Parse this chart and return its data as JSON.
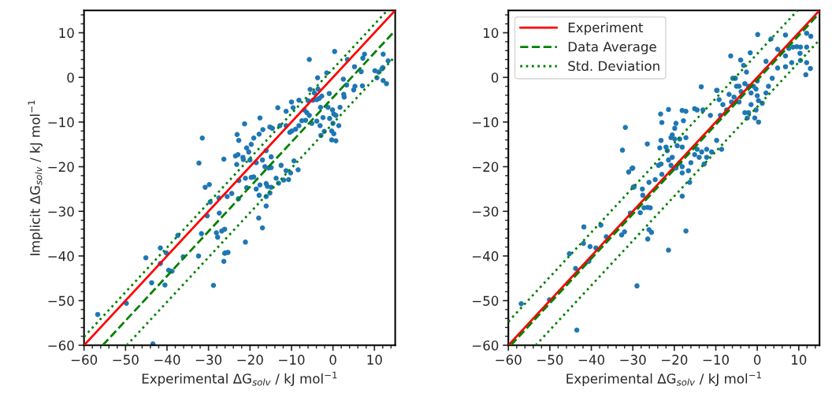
{
  "chart_data": [
    {
      "type": "scatter",
      "xlabel": "Experimental ΔG$_{solv}$ / kJ mol$^{−1}$",
      "ylabel": "Implicit ΔG$_{solv}$ / kJ mol$^{−1}$",
      "xlim": [
        -60,
        15
      ],
      "ylim": [
        -60,
        15
      ],
      "xticks": [
        -60,
        -50,
        -40,
        -30,
        -20,
        -10,
        0,
        10
      ],
      "yticks": [
        -60,
        -50,
        -40,
        -30,
        -20,
        -10,
        0,
        10
      ],
      "grid": false,
      "legend": false,
      "series": [
        {
          "color": "#1f77b4",
          "marker": "circle",
          "x": [
            -31.5,
            -32.3,
            -26.3,
            -30.8,
            -29.8,
            -29.6,
            -27.5,
            -30.3,
            -27.4,
            -31.7,
            -28.1,
            -27.8,
            -26.8,
            -26.1,
            -26.1,
            -26.3,
            -32.4,
            -28.8,
            -37.4,
            -36.1,
            -41.6,
            -40.2,
            -41.6,
            -39.6,
            -38.8,
            -45.1,
            -43.7,
            -40.5,
            -49.8,
            -56.7,
            -43.4,
            0.4,
            -5.7,
            -1.5,
            -3.7,
            3.5,
            5.2,
            7.6,
            7.2,
            12.1,
            13.3,
            6.8,
            10.1,
            11.0,
            11.8,
            12.0,
            10.6,
            12.1,
            12.9,
            5.3,
            5.0,
            7.1,
            2.5,
            3.3,
            2.6,
            2.7,
            -0.9,
            -2.7,
            -3.6,
            -5.5,
            -4.5,
            -6.0,
            -4.8,
            -3.9,
            -3.3,
            -8.2,
            -10.0,
            -9.6,
            -13.3,
            -11.3,
            -6.9,
            -6.3,
            -5.7,
            -3.0,
            -1.2,
            -0.1,
            0.2,
            1.7,
            -0.8,
            -2.4,
            0.7,
            1.4,
            0.0,
            -0.3,
            0.2,
            -0.3,
            0.7,
            -2.9,
            -2.1,
            -3.1,
            -3.9,
            -5.1,
            -6.6,
            -7.5,
            -8.2,
            -9.0,
            -9.9,
            -10.4,
            -11.3,
            -12.8,
            -14.6,
            -15.2,
            -17.6,
            -21.3,
            -16.9,
            -17.8,
            -23.1,
            -22.7,
            -19.1,
            -19.7,
            -20.8,
            -20.3,
            -16.1,
            -23.5,
            -22.9,
            -21.7,
            -21.6,
            -23.2,
            -20.0,
            -18.5,
            -17.0,
            -14.9,
            -16.4,
            -15.5,
            -22.7,
            -21.1,
            -19.7,
            -19.1,
            -14.9,
            -12.5,
            -11.3,
            -10.2,
            -10.7,
            -11.9,
            -13.7,
            -13.1,
            -14.9,
            -15.8,
            -8.4,
            -9.4,
            -24.4,
            -22.8,
            -25.5,
            -20.8,
            -18.5,
            -17.6,
            -16.1,
            -15.2,
            -17.8,
            -16.1,
            -16.1,
            -17.9,
            -17.0,
            -21.1,
            -25.9,
            -25.3
          ],
          "values": [
            -13.6,
            -19.2,
            -18.3,
            -24.6,
            -24.0,
            -27.9,
            -27.0,
            -31.0,
            -30.4,
            -35.0,
            -34.8,
            -35.8,
            -34.4,
            -34.0,
            -39.4,
            -41.2,
            -40.0,
            -46.6,
            -35.4,
            -40.2,
            -38.2,
            -39.3,
            -41.7,
            -43.2,
            -43.4,
            -40.4,
            -46.0,
            -46.5,
            -50.6,
            -53.1,
            -59.7,
            5.8,
            4.0,
            1.0,
            -0.1,
            4.0,
            2.4,
            5.2,
            4.3,
            5.2,
            3.7,
            1.3,
            1.5,
            1.2,
            1.9,
            2.2,
            -0.1,
            -0.7,
            -1.4,
            -2.0,
            -2.8,
            -1.9,
            -0.4,
            -1.7,
            -3.8,
            -4.4,
            -3.6,
            -4.2,
            -2.6,
            -2.7,
            -3.5,
            -5.2,
            -5.1,
            -5.0,
            -4.7,
            -5.1,
            -5.5,
            -6.8,
            -6.8,
            -7.6,
            -7.3,
            -7.9,
            -8.5,
            -6.7,
            -6.7,
            -7.3,
            -8.2,
            -6.7,
            -9.2,
            -9.0,
            -8.5,
            -10.8,
            -10.3,
            -12.0,
            -12.6,
            -14.0,
            -14.2,
            -13.0,
            -12.1,
            -10.8,
            -9.8,
            -10.3,
            -9.6,
            -9.7,
            -10.8,
            -11.6,
            -12.0,
            -12.3,
            -10.8,
            -10.8,
            -11.4,
            -11.1,
            -9.1,
            -10.4,
            -11.7,
            -12.7,
            -12.8,
            -14.1,
            -13.6,
            -15.0,
            -15.8,
            -16.7,
            -16.4,
            -17.6,
            -17.3,
            -17.9,
            -18.4,
            -19.5,
            -18.5,
            -19.1,
            -18.5,
            -17.8,
            -20.0,
            -20.3,
            -23.1,
            -22.6,
            -22.4,
            -22.3,
            -20.2,
            -19.7,
            -20.9,
            -21.4,
            -22.9,
            -23.0,
            -22.6,
            -23.7,
            -24.6,
            -24.4,
            -20.7,
            -18.7,
            -26.0,
            -27.2,
            -26.7,
            -24.7,
            -25.0,
            -24.1,
            -23.8,
            -25.9,
            -26.4,
            -26.7,
            -28.8,
            -31.5,
            -33.7,
            -36.9,
            -39.3,
            -39.2
          ]
        },
        {
          "type": "line",
          "color": "#ff0000",
          "line_style": "solid",
          "x": [
            -60,
            15
          ],
          "values": [
            -60,
            15
          ]
        },
        {
          "type": "line",
          "color": "#008000",
          "line_style": "dashed",
          "x": [
            -55.5,
            15
          ],
          "values": [
            -60,
            10.5
          ]
        },
        {
          "type": "line",
          "color": "#008000",
          "line_style": "dotted",
          "x": [
            -60,
            13.1
          ],
          "values": [
            -58.1,
            15
          ]
        },
        {
          "type": "line",
          "color": "#008000",
          "line_style": "dotted",
          "x": [
            -49.7,
            15
          ],
          "values": [
            -60,
            4.7
          ]
        }
      ]
    },
    {
      "type": "scatter",
      "xlabel": "Experimental ΔG$_{solv}$ / kJ mol$^{−1}$",
      "xlim": [
        -60,
        15
      ],
      "ylim": [
        -60,
        15
      ],
      "xticks": [
        -60,
        -50,
        -40,
        -30,
        -20,
        -10,
        0,
        10
      ],
      "yticks": [
        -60,
        -50,
        -40,
        -30,
        -20,
        -10,
        0,
        10
      ],
      "grid": false,
      "legend": "top left",
      "series": [
        {
          "color": "#1f77b4",
          "marker": "circle",
          "x": [
            -31.8,
            -32.5,
            -31.0,
            -30.2,
            -29.9,
            -30.6,
            -32.7,
            -32.0,
            -36.4,
            -37.7,
            -41.8,
            -41.9,
            -40.3,
            -38.9,
            -40.6,
            -45.3,
            -43.8,
            -50.1,
            -56.9,
            -43.5,
            0.1,
            -6.4,
            -1.7,
            -4.0,
            -3.3,
            -2.6,
            -13.5,
            -9.8,
            2.1,
            3.3,
            4.9,
            6.8,
            7.6,
            8.6,
            9.5,
            10.4,
            11.9,
            11.9,
            12.9,
            5.7,
            6.8,
            4.9,
            6.8,
            8.3,
            10.3,
            10.4,
            11.9,
            11.7,
            12.8,
            3.6,
            2.7,
            2.1,
            1.2,
            0.0,
            -0.3,
            -0.9,
            -1.5,
            -2.1,
            -3.0,
            -3.9,
            -4.4,
            -5.3,
            -5.9,
            -5.0,
            0.0,
            0.3,
            -0.3,
            0.3,
            -0.6,
            -2.1,
            -3.0,
            -2.4,
            -1.5,
            -8.3,
            -7.4,
            -8.9,
            -9.2,
            -6.8,
            -5.6,
            -4.4,
            -6.2,
            -9.7,
            -11.3,
            -15.1,
            -18.1,
            -17.2,
            -14.5,
            -13.1,
            -21.4,
            -23.3,
            -23.0,
            -17.8,
            -19.6,
            -19.9,
            -20.5,
            -20.8,
            -19.9,
            -18.7,
            -17.2,
            -19.3,
            -18.1,
            -23.2,
            -23.5,
            -22.0,
            -21.7,
            -26.5,
            -14.5,
            -13.4,
            -12.2,
            -11.0,
            -9.8,
            -8.6,
            -15.1,
            -14.0,
            -12.2,
            -12.8,
            -16.0,
            -16.6,
            -16.3,
            -18.1,
            -18.7,
            -19.6,
            -20.8,
            -21.4,
            -20.5,
            -18.1,
            -23.2,
            -23.8,
            -23.0,
            -18.1,
            -17.2,
            -24.6,
            -26.1,
            -27.7,
            -27.6,
            -27.3,
            -26.4,
            -25.8,
            -28.2,
            -29.7,
            -30.0,
            -26.1,
            -25.5,
            -26.4,
            -21.4,
            -29.0
          ],
          "values": [
            -11.2,
            -16.3,
            -21.2,
            -20.4,
            -24.6,
            -30.4,
            -35.3,
            -34.6,
            -35.7,
            -33.1,
            -33.5,
            -37.2,
            -37.9,
            -38.2,
            -41.2,
            -39.5,
            -42.8,
            -49.8,
            -50.7,
            -56.6,
            9.6,
            4.8,
            5.5,
            3.9,
            2.7,
            1.2,
            -2.1,
            -2.9,
            3.6,
            8.6,
            6.3,
            9.5,
            6.5,
            6.8,
            6.9,
            6.8,
            6.8,
            9.9,
            9.2,
            5.6,
            4.8,
            2.1,
            2.4,
            3.3,
            5.4,
            3.8,
            3.3,
            0.6,
            2.0,
            -0.2,
            -2.0,
            -3.5,
            -5.8,
            -0.8,
            -2.6,
            -2.0,
            -3.5,
            -2.0,
            -1.4,
            -3.2,
            -2.0,
            -0.2,
            -0.2,
            -2.0,
            -4.1,
            -5.2,
            -7.3,
            -10.0,
            -9.1,
            -7.9,
            -7.9,
            -9.1,
            -6.1,
            -6.1,
            -7.3,
            -8.5,
            -5.0,
            -3.8,
            -4.4,
            -5.5,
            -5.5,
            -2.9,
            -8.5,
            -7.0,
            -7.4,
            -7.6,
            -7.3,
            -7.3,
            -7.2,
            -8.2,
            -10.1,
            -9.7,
            -10.3,
            -11.4,
            -12.9,
            -13.5,
            -13.8,
            -13.8,
            -13.5,
            -15.3,
            -15.6,
            -14.1,
            -15.8,
            -15.6,
            -16.4,
            -14.9,
            -16.1,
            -16.7,
            -16.1,
            -16.7,
            -14.1,
            -16.1,
            -17.3,
            -17.9,
            -17.9,
            -19.4,
            -19.1,
            -20.9,
            -23.5,
            -20.0,
            -19.1,
            -20.3,
            -19.7,
            -18.5,
            -17.9,
            -21.4,
            -19.4,
            -19.7,
            -21.7,
            -26.6,
            -34.4,
            -22.9,
            -23.5,
            -25.0,
            -26.4,
            -29.2,
            -29.1,
            -29.2,
            -30.3,
            -24.5,
            -20.3,
            -34.1,
            -34.7,
            -36.2,
            -38.7,
            -46.7
          ]
        },
        {
          "type": "line",
          "name": "Experiment",
          "color": "#ff0000",
          "line_style": "solid",
          "x": [
            -60,
            15
          ],
          "values": [
            -60,
            15
          ]
        },
        {
          "type": "line",
          "name": "Data Average",
          "color": "#008000",
          "line_style": "dashed",
          "x": [
            -59.4,
            15
          ],
          "values": [
            -60,
            14.4
          ]
        },
        {
          "type": "line",
          "name": "Std. Deviation",
          "color": "#008000",
          "line_style": "dotted",
          "x": [
            -60,
            9.7
          ],
          "values": [
            -54.7,
            15
          ]
        },
        {
          "type": "line",
          "color": "#008000",
          "line_style": "dotted",
          "x": [
            -53.4,
            15
          ],
          "values": [
            -60,
            8.4
          ]
        }
      ]
    }
  ]
}
